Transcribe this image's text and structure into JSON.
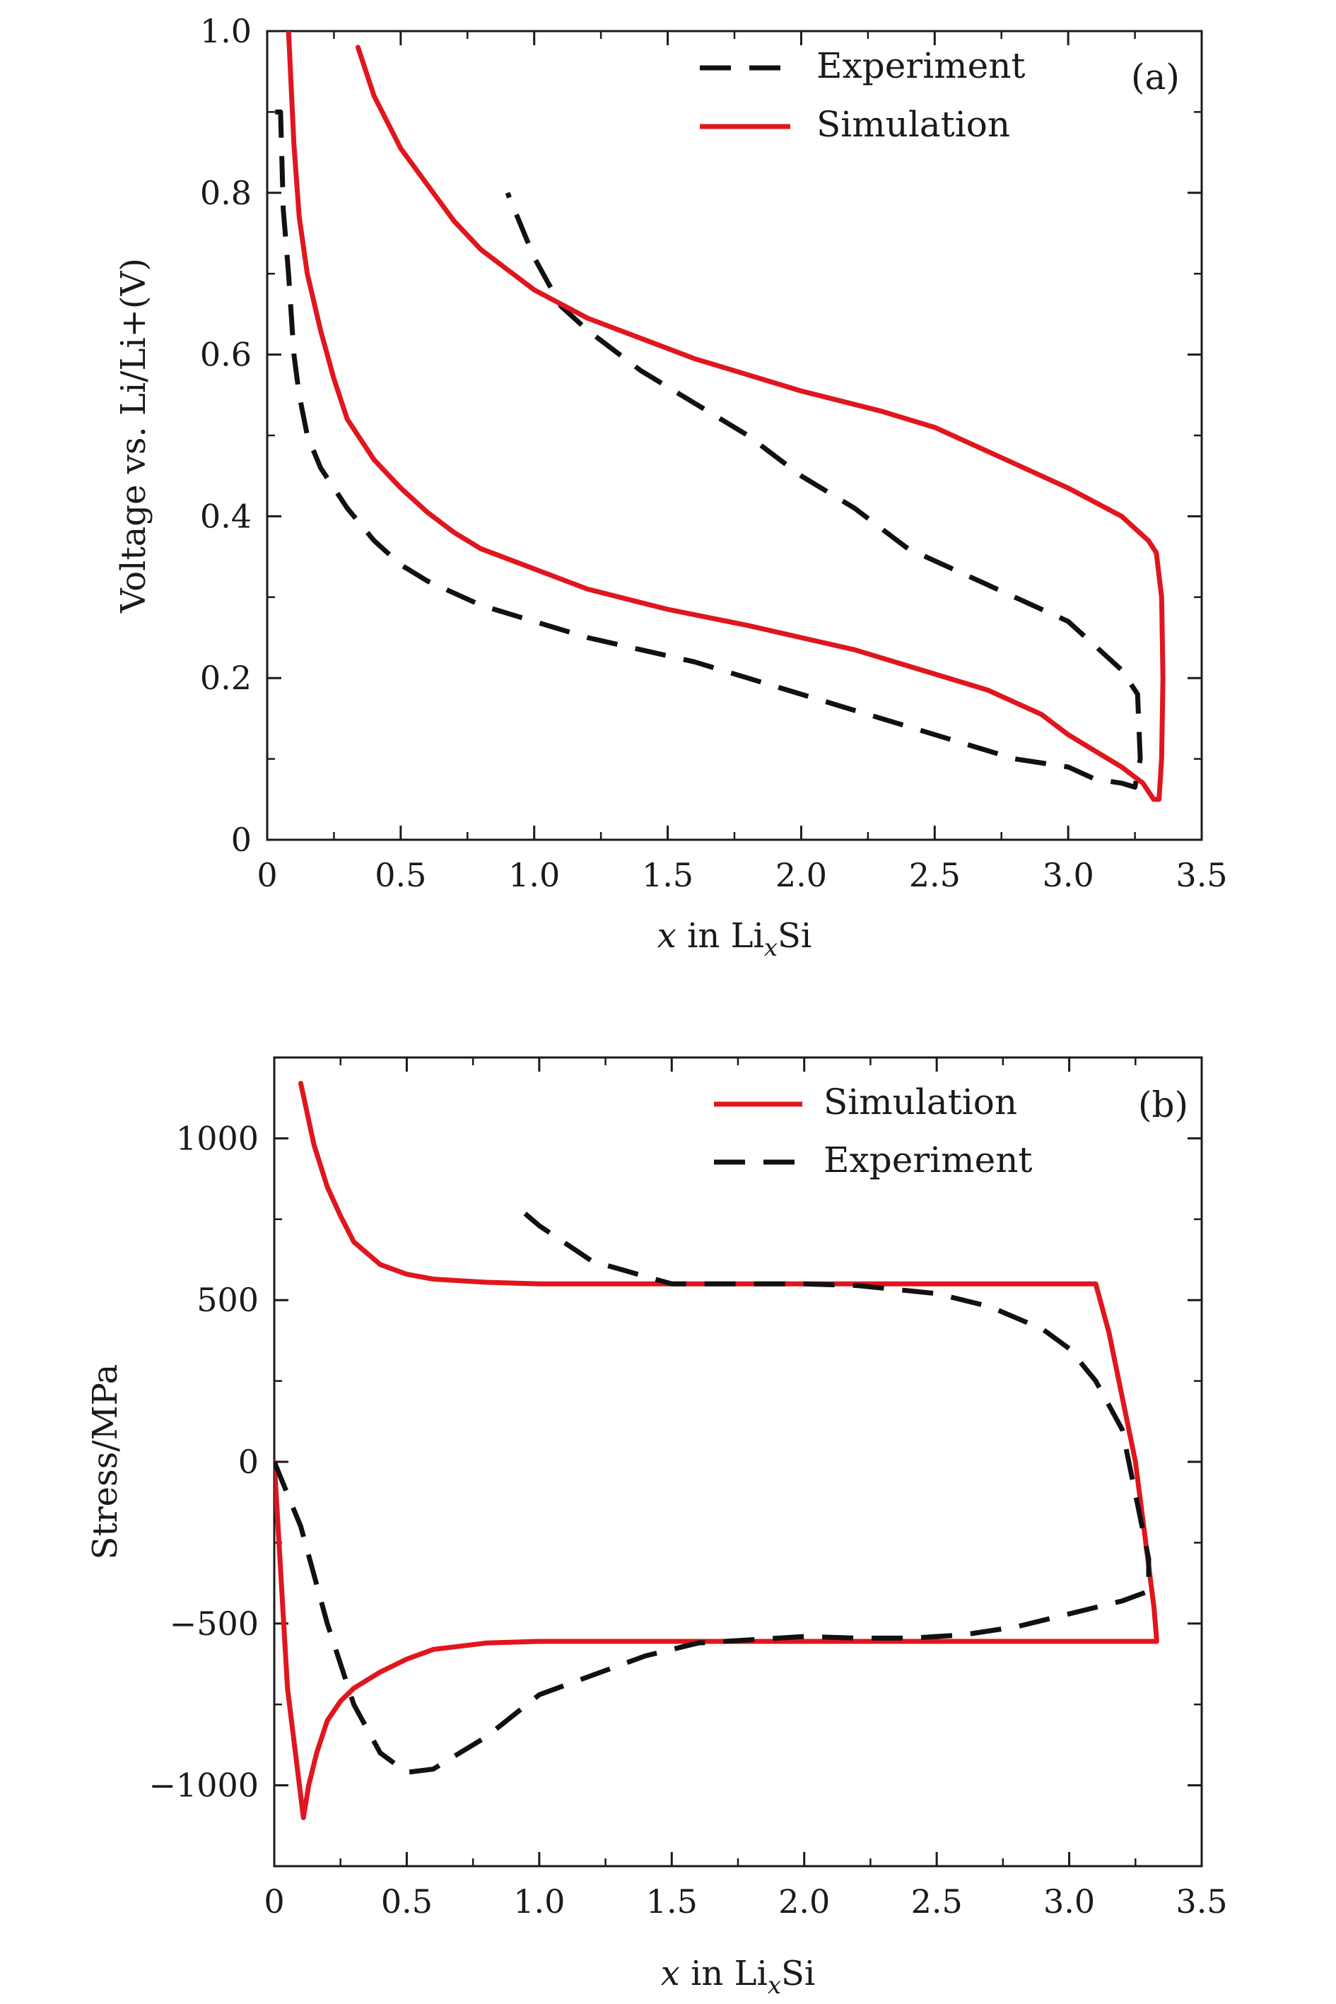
{
  "colors": {
    "simulation": "#e0161e",
    "experiment": "#111111",
    "axis": "#1a1a1a"
  },
  "chart_data": [
    {
      "type": "line",
      "panel_label": "(a)",
      "xlabel": "x in LixSi",
      "xlabel_parts": {
        "var": "x",
        "mid": " in Li",
        "sub": "x",
        "tail": "Si"
      },
      "ylabel": "Voltage vs. Li/Li+(V)",
      "xlim": [
        0,
        3.5
      ],
      "ylim": [
        0,
        1.0
      ],
      "xticks": [
        0,
        0.5,
        1.0,
        1.5,
        2.0,
        2.5,
        3.0,
        3.5
      ],
      "xtick_labels": [
        "0",
        "0.5",
        "1.0",
        "1.5",
        "2.0",
        "2.5",
        "3.0",
        "3.5"
      ],
      "yticks": [
        0,
        0.2,
        0.4,
        0.6,
        0.8,
        1.0
      ],
      "ytick_labels": [
        "0",
        "0.2",
        "0.4",
        "0.6",
        "0.8",
        "1.0"
      ],
      "grid": false,
      "legend_position": "top-right",
      "series": [
        {
          "name": "Experiment",
          "style": "dashed",
          "color": "#111111",
          "x": [
            0.03,
            0.04,
            0.05,
            0.06,
            0.08,
            0.1,
            0.12,
            0.15,
            0.2,
            0.3,
            0.4,
            0.5,
            0.6,
            0.8,
            1.0,
            1.2,
            1.4,
            1.6,
            1.8,
            2.0,
            2.2,
            2.4,
            2.6,
            2.8,
            3.0,
            3.1,
            3.2,
            3.25,
            3.27,
            3.26,
            3.2,
            3.1,
            3.0,
            2.8,
            2.6,
            2.4,
            2.2,
            2.0,
            1.8,
            1.6,
            1.4,
            1.2,
            1.1,
            1.0,
            0.9
          ],
          "y": [
            0.9,
            0.9,
            0.9,
            0.78,
            0.7,
            0.6,
            0.55,
            0.5,
            0.46,
            0.41,
            0.37,
            0.34,
            0.32,
            0.29,
            0.27,
            0.25,
            0.235,
            0.22,
            0.2,
            0.18,
            0.16,
            0.14,
            0.12,
            0.1,
            0.09,
            0.075,
            0.07,
            0.065,
            0.1,
            0.18,
            0.21,
            0.24,
            0.27,
            0.3,
            0.33,
            0.36,
            0.41,
            0.45,
            0.5,
            0.54,
            0.58,
            0.63,
            0.66,
            0.72,
            0.8
          ]
        },
        {
          "name": "Simulation",
          "style": "solid",
          "color": "#e0161e",
          "x": [
            0.08,
            0.09,
            0.1,
            0.12,
            0.15,
            0.2,
            0.25,
            0.3,
            0.4,
            0.5,
            0.6,
            0.7,
            0.8,
            1.0,
            1.2,
            1.5,
            1.8,
            2.0,
            2.2,
            2.5,
            2.7,
            2.9,
            3.0,
            3.1,
            3.2,
            3.28,
            3.32,
            3.34,
            3.35,
            3.355,
            3.35,
            3.33,
            3.3,
            3.2,
            3.0,
            2.8,
            2.6,
            2.5,
            2.3,
            2.0,
            1.8,
            1.6,
            1.4,
            1.2,
            1.0,
            0.9,
            0.8,
            0.7,
            0.6,
            0.5,
            0.4,
            0.34
          ],
          "y": [
            1.0,
            0.93,
            0.86,
            0.77,
            0.7,
            0.63,
            0.57,
            0.52,
            0.47,
            0.435,
            0.405,
            0.38,
            0.36,
            0.335,
            0.31,
            0.285,
            0.265,
            0.25,
            0.235,
            0.205,
            0.185,
            0.155,
            0.13,
            0.11,
            0.09,
            0.07,
            0.05,
            0.05,
            0.1,
            0.2,
            0.3,
            0.355,
            0.37,
            0.4,
            0.435,
            0.465,
            0.495,
            0.51,
            0.53,
            0.555,
            0.575,
            0.595,
            0.62,
            0.645,
            0.68,
            0.705,
            0.73,
            0.765,
            0.81,
            0.855,
            0.92,
            0.98
          ]
        }
      ]
    },
    {
      "type": "line",
      "panel_label": "(b)",
      "xlabel": "x in LixSi",
      "xlabel_parts": {
        "var": "x",
        "mid": " in Li",
        "sub": "x",
        "tail": "Si"
      },
      "ylabel": "Stress/MPa",
      "xlim": [
        0,
        3.5
      ],
      "ylim": [
        -1250,
        1250
      ],
      "xticks": [
        0,
        0.5,
        1.0,
        1.5,
        2.0,
        2.5,
        3.0,
        3.5
      ],
      "xtick_labels": [
        "0",
        "0.5",
        "1.0",
        "1.5",
        "2.0",
        "2.5",
        "3.0",
        "3.5"
      ],
      "yticks": [
        -1000,
        -500,
        0,
        500,
        1000
      ],
      "ytick_labels": [
        "−1000",
        "−500",
        "0",
        "500",
        "1000"
      ],
      "grid": false,
      "legend_position": "top-right",
      "series": [
        {
          "name": "Simulation",
          "style": "solid",
          "color": "#e0161e",
          "x": [
            0.0,
            0.05,
            0.11,
            0.13,
            0.16,
            0.2,
            0.25,
            0.3,
            0.4,
            0.5,
            0.6,
            0.8,
            1.0,
            1.5,
            2.0,
            2.5,
            3.0,
            3.2,
            3.3,
            3.33,
            3.33,
            3.32,
            3.25,
            3.15,
            3.1,
            3.0,
            2.5,
            2.0,
            1.5,
            1.0,
            0.8,
            0.6,
            0.5,
            0.4,
            0.3,
            0.25,
            0.2,
            0.15,
            0.1
          ],
          "y": [
            0,
            -700,
            -1100,
            -1000,
            -900,
            -800,
            -740,
            -700,
            -650,
            -610,
            -580,
            -560,
            -555,
            -555,
            -555,
            -555,
            -555,
            -555,
            -555,
            -555,
            -550,
            -450,
            0,
            400,
            550,
            550,
            550,
            550,
            550,
            550,
            555,
            565,
            580,
            610,
            680,
            760,
            850,
            980,
            1170
          ]
        },
        {
          "name": "Experiment",
          "style": "dashed",
          "color": "#111111",
          "x": [
            0.0,
            0.1,
            0.2,
            0.3,
            0.4,
            0.5,
            0.6,
            0.7,
            0.8,
            1.0,
            1.2,
            1.4,
            1.6,
            1.8,
            2.0,
            2.2,
            2.4,
            2.6,
            2.8,
            3.0,
            3.1,
            3.2,
            3.3,
            3.3,
            3.25,
            3.2,
            3.1,
            3.0,
            2.9,
            2.7,
            2.5,
            2.2,
            2.0,
            1.8,
            1.6,
            1.5,
            1.2,
            1.0,
            0.9
          ],
          "y": [
            0,
            -200,
            -500,
            -750,
            -900,
            -960,
            -950,
            -900,
            -850,
            -720,
            -660,
            -600,
            -560,
            -550,
            -540,
            -545,
            -545,
            -535,
            -510,
            -470,
            -450,
            -430,
            -400,
            -300,
            -100,
            100,
            250,
            350,
            410,
            480,
            520,
            545,
            550,
            550,
            550,
            550,
            620,
            730,
            800
          ]
        }
      ]
    }
  ]
}
